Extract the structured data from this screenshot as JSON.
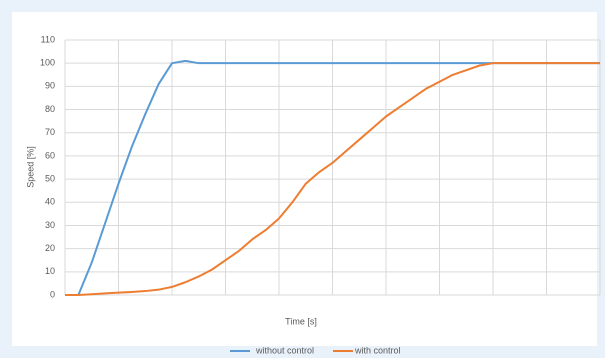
{
  "chart_data": {
    "type": "line",
    "x_label": "Time [s]",
    "y_label": "Speed [%]",
    "categories": [
      null,
      null,
      null,
      null,
      null,
      null,
      null,
      null,
      null,
      null,
      null,
      null,
      null,
      null,
      null,
      null,
      null,
      null,
      null,
      null,
      null,
      null,
      null,
      null,
      null,
      null,
      null,
      null,
      null,
      null,
      null,
      null,
      null,
      null,
      null,
      null,
      null,
      null,
      null,
      null,
      null
    ],
    "series": [
      {
        "name": "without control",
        "color": "#5b9bd5",
        "values": [
          0,
          0,
          14,
          31,
          48,
          64,
          78,
          91,
          100,
          101,
          100,
          100,
          100,
          100,
          100,
          100,
          100,
          100,
          100,
          100,
          100,
          100,
          100,
          100,
          100,
          100,
          100,
          100,
          100,
          100,
          100,
          100,
          100,
          100,
          100,
          100,
          100,
          100,
          100,
          100,
          100
        ]
      },
      {
        "name": "with control",
        "color": "#ed7d31",
        "values": [
          0,
          0,
          0.3,
          0.7,
          1,
          1.3,
          1.7,
          2.3,
          3.5,
          5.5,
          8,
          11,
          15,
          19,
          24,
          28,
          33,
          40,
          48,
          53,
          57,
          62,
          67,
          72,
          77,
          81,
          85,
          89,
          92,
          95,
          97,
          99,
          100,
          100,
          100,
          100,
          100,
          100,
          100,
          100,
          100
        ]
      }
    ],
    "ylim": [
      0,
      110
    ],
    "yticks": [
      0,
      10,
      20,
      30,
      40,
      50,
      60,
      70,
      80,
      90,
      100,
      110
    ],
    "grid": true,
    "legend": "bottom"
  }
}
